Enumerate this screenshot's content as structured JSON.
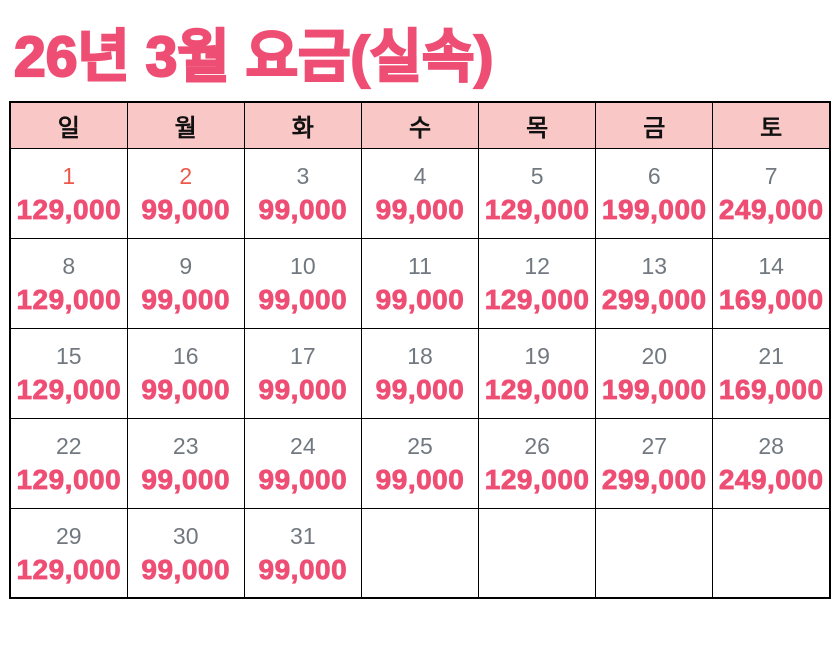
{
  "page": {
    "title": "26년 3월 요금(실속)"
  },
  "colors": {
    "accent_pink": "#ef4e74",
    "header_bg": "#fac7c7",
    "day_gray": "#71787f",
    "holiday_red": "#ee584a",
    "border": "#000000"
  },
  "calendar": {
    "weekday_headers": [
      "일",
      "월",
      "화",
      "수",
      "목",
      "금",
      "토"
    ],
    "weeks": [
      [
        {
          "day": "1",
          "price": "129,000",
          "holiday": true
        },
        {
          "day": "2",
          "price": "99,000",
          "holiday": true
        },
        {
          "day": "3",
          "price": "99,000",
          "holiday": false
        },
        {
          "day": "4",
          "price": "99,000",
          "holiday": false
        },
        {
          "day": "5",
          "price": "129,000",
          "holiday": false
        },
        {
          "day": "6",
          "price": "199,000",
          "holiday": false
        },
        {
          "day": "7",
          "price": "249,000",
          "holiday": false
        }
      ],
      [
        {
          "day": "8",
          "price": "129,000",
          "holiday": false
        },
        {
          "day": "9",
          "price": "99,000",
          "holiday": false
        },
        {
          "day": "10",
          "price": "99,000",
          "holiday": false
        },
        {
          "day": "11",
          "price": "99,000",
          "holiday": false
        },
        {
          "day": "12",
          "price": "129,000",
          "holiday": false
        },
        {
          "day": "13",
          "price": "299,000",
          "holiday": false
        },
        {
          "day": "14",
          "price": "169,000",
          "holiday": false
        }
      ],
      [
        {
          "day": "15",
          "price": "129,000",
          "holiday": false
        },
        {
          "day": "16",
          "price": "99,000",
          "holiday": false
        },
        {
          "day": "17",
          "price": "99,000",
          "holiday": false
        },
        {
          "day": "18",
          "price": "99,000",
          "holiday": false
        },
        {
          "day": "19",
          "price": "129,000",
          "holiday": false
        },
        {
          "day": "20",
          "price": "199,000",
          "holiday": false
        },
        {
          "day": "21",
          "price": "169,000",
          "holiday": false
        }
      ],
      [
        {
          "day": "22",
          "price": "129,000",
          "holiday": false
        },
        {
          "day": "23",
          "price": "99,000",
          "holiday": false
        },
        {
          "day": "24",
          "price": "99,000",
          "holiday": false
        },
        {
          "day": "25",
          "price": "99,000",
          "holiday": false
        },
        {
          "day": "26",
          "price": "129,000",
          "holiday": false
        },
        {
          "day": "27",
          "price": "299,000",
          "holiday": false
        },
        {
          "day": "28",
          "price": "249,000",
          "holiday": false
        }
      ],
      [
        {
          "day": "29",
          "price": "129,000",
          "holiday": false
        },
        {
          "day": "30",
          "price": "99,000",
          "holiday": false
        },
        {
          "day": "31",
          "price": "99,000",
          "holiday": false
        },
        {
          "day": "",
          "price": "",
          "holiday": false
        },
        {
          "day": "",
          "price": "",
          "holiday": false
        },
        {
          "day": "",
          "price": "",
          "holiday": false
        },
        {
          "day": "",
          "price": "",
          "holiday": false
        }
      ]
    ]
  }
}
